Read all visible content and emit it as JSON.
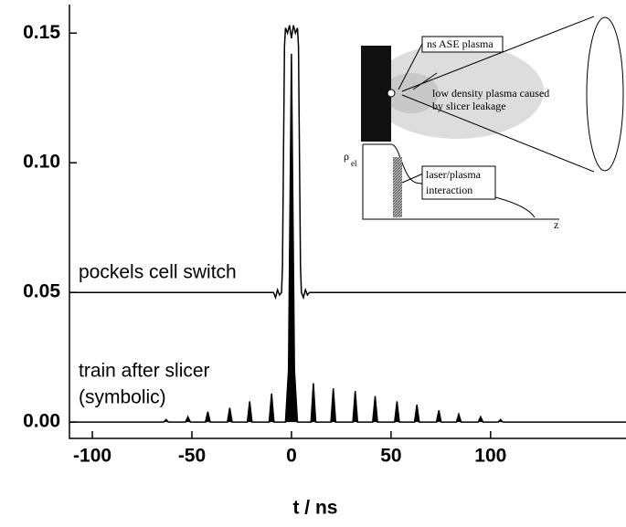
{
  "chart_data": {
    "type": "line",
    "x_label": "t / ns",
    "annotations": [
      "pockels cell switch",
      "train after slicer",
      "(symbolic)"
    ],
    "xlim": [
      -111.5,
      168
    ],
    "ylim": [
      -0.0063,
      0.161
    ],
    "xticks": [
      -100,
      -50,
      0,
      50,
      100
    ],
    "yticks": [
      {
        "value": 0,
        "label": "0.00"
      },
      {
        "value": 0.05,
        "label": "0.05"
      },
      {
        "value": 0.1,
        "label": "0.10"
      },
      {
        "value": 0.15,
        "label": "0.15"
      }
    ],
    "series": [
      {
        "name": "pockels cell switch",
        "color": "#000000",
        "fill": false,
        "x": [
          -111.5,
          -9,
          -8,
          -7,
          -6,
          -5,
          -4.5,
          -3.5,
          -3,
          -2,
          -1,
          0,
          1,
          2,
          3,
          3.5,
          4.5,
          5,
          6,
          7,
          8,
          9,
          168
        ],
        "values": [
          0.05,
          0.05,
          0.048,
          0.051,
          0.049,
          0.05,
          0.06,
          0.145,
          0.152,
          0.15,
          0.153,
          0.148,
          0.153,
          0.15,
          0.152,
          0.145,
          0.06,
          0.05,
          0.048,
          0.051,
          0.049,
          0.05,
          0.05
        ]
      },
      {
        "name": "train after slicer",
        "color": "#000000",
        "fill": true,
        "x": [
          -111.5,
          -64.2,
          -63,
          -61.8,
          -53.2,
          -52,
          -50.8,
          -43.2,
          -42,
          -40.8,
          -32.2,
          -31,
          -29.8,
          -22.2,
          -21,
          -19.8,
          -11.2,
          -10,
          -8.8,
          -3,
          -1.5,
          0,
          1.5,
          3,
          9.8,
          11,
          12.2,
          19.8,
          21,
          22.2,
          30.8,
          32,
          33.2,
          40.8,
          42,
          43.2,
          51.8,
          53,
          54.2,
          61.8,
          63,
          64.2,
          72.8,
          74,
          75.2,
          82.8,
          84,
          85.2,
          93.8,
          95,
          96.2,
          103.8,
          105,
          106.2,
          168
        ],
        "values": [
          0,
          0,
          0.001,
          0,
          0,
          0.002,
          0,
          0,
          0.004,
          0,
          0,
          0.0055,
          0,
          0,
          0.008,
          0,
          0,
          0.011,
          0,
          0,
          0.02,
          0.142,
          0.02,
          0,
          0,
          0.015,
          0,
          0,
          0.013,
          0,
          0,
          0.012,
          0,
          0,
          0.01,
          0,
          0,
          0.008,
          0,
          0,
          0.0067,
          0,
          0,
          0.0045,
          0,
          0,
          0.003,
          0,
          0,
          0.002,
          0,
          0,
          0.001,
          0,
          0
        ]
      }
    ],
    "inset": {
      "ase": "ns ASE plasma",
      "leak_1": "low density plasma caused",
      "leak_2": "by slicer leakage",
      "rho": "ρ",
      "rho_sub": "el",
      "inter_1": "laser/plasma",
      "inter_2": "interaction",
      "z": "z"
    }
  }
}
